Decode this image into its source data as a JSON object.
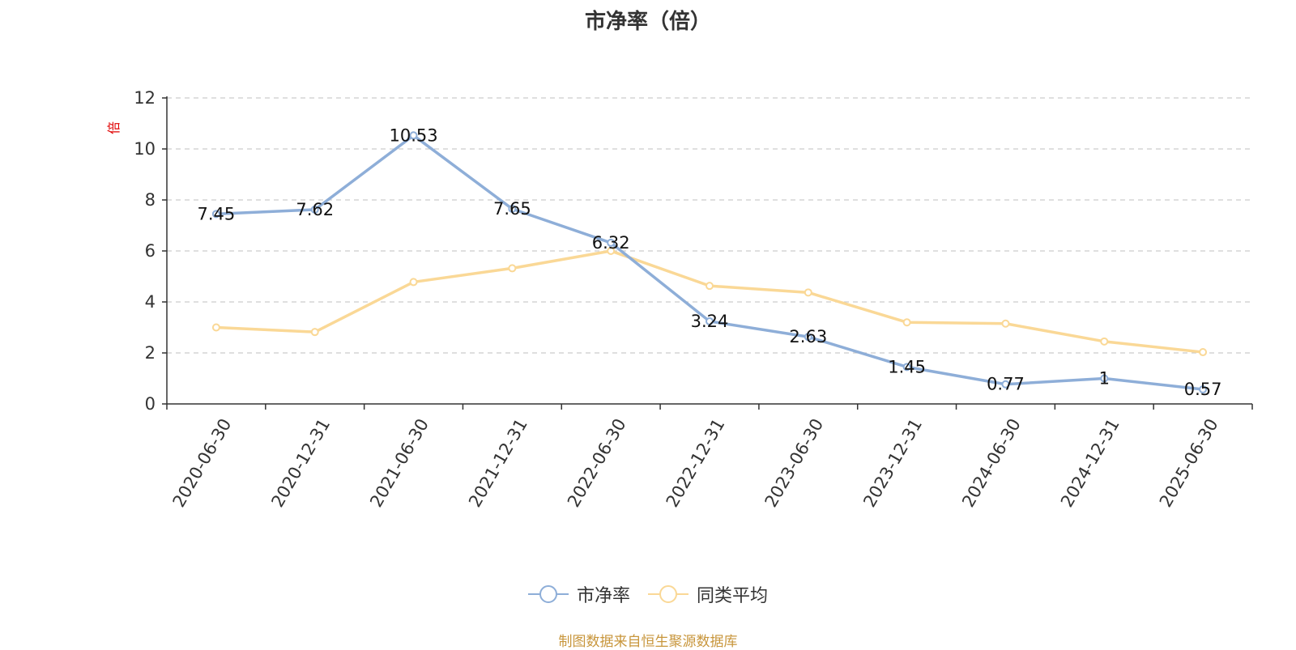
{
  "title": "市净率（倍）",
  "unit_label": "倍",
  "source_note": "制图数据来自恒生聚源数据库",
  "colors": {
    "series1": "#8eaed8",
    "series2": "#fad896",
    "source_note": "#c8963c",
    "unit_label": "#e00000",
    "grid": "#cccccc",
    "axis": "#333333"
  },
  "chart_data": {
    "type": "line",
    "title": "市净率（倍）",
    "ylabel": "倍",
    "xlabel": "",
    "ylim": [
      0,
      12
    ],
    "yticks": [
      0,
      2,
      4,
      6,
      8,
      10,
      12
    ],
    "grid": "horizontal dashed",
    "legend_position": "bottom",
    "categories": [
      "2020-06-30",
      "2020-12-31",
      "2021-06-30",
      "2021-12-31",
      "2022-06-30",
      "2022-12-31",
      "2023-06-30",
      "2023-12-31",
      "2024-06-30",
      "2024-12-31",
      "2025-06-30"
    ],
    "series": [
      {
        "name": "市净率",
        "values": [
          7.45,
          7.62,
          10.53,
          7.65,
          6.32,
          3.24,
          2.63,
          1.45,
          0.77,
          1,
          0.57
        ],
        "data_labels": [
          "7.45",
          "7.62",
          "10.53",
          "7.65",
          "6.32",
          "3.24",
          "2.63",
          "1.45",
          "0.77",
          "1",
          "0.57"
        ]
      },
      {
        "name": "同类平均",
        "values": [
          3.0,
          2.82,
          4.78,
          5.32,
          6.0,
          4.63,
          4.37,
          3.2,
          3.15,
          2.45,
          2.03
        ]
      }
    ]
  }
}
